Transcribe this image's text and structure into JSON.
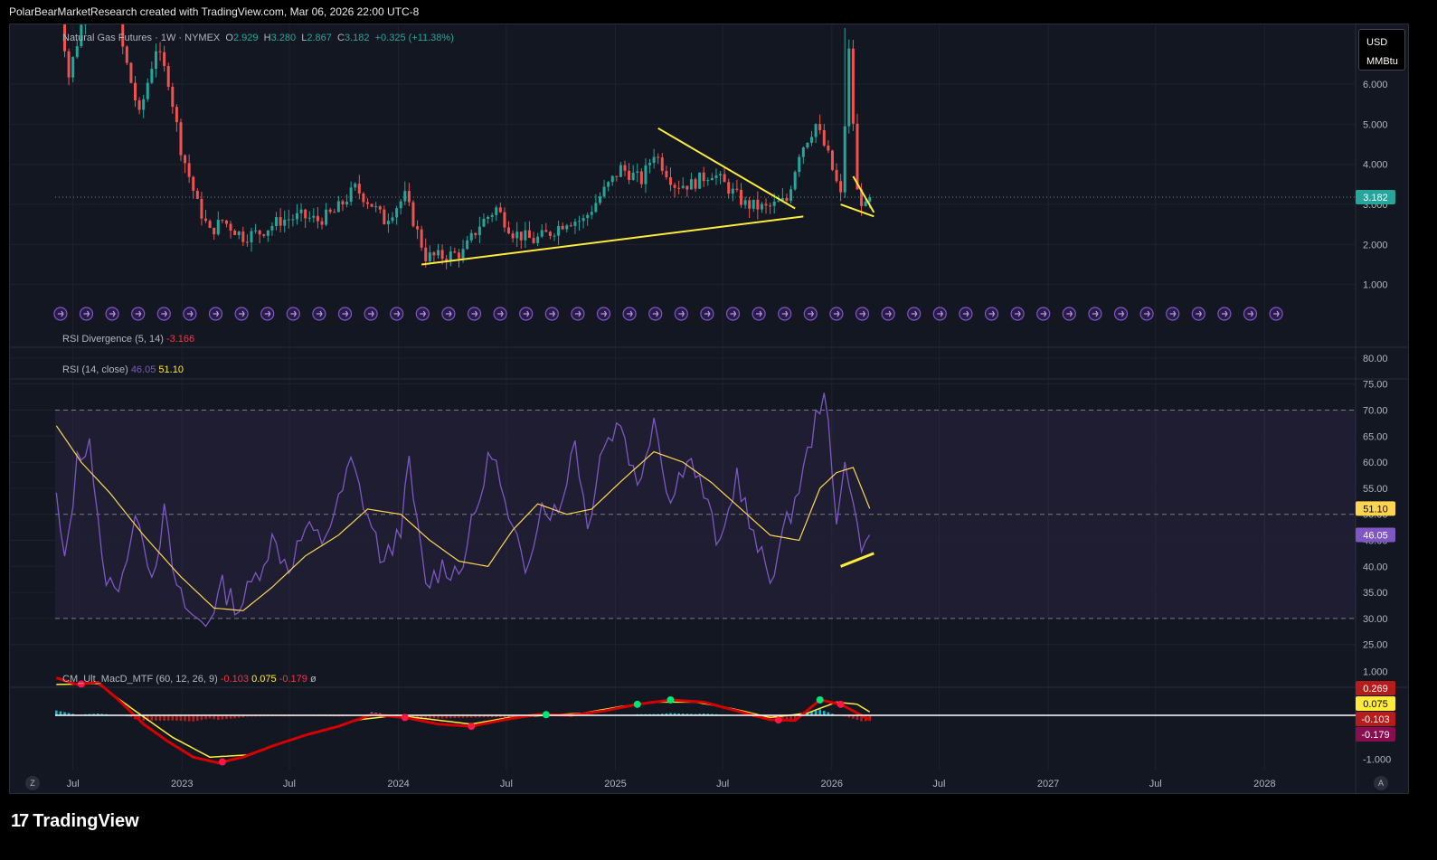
{
  "header": {
    "attribution": "PolarBearMarketResearch created with TradingView.com, Mar 06, 2026 22:00 UTC-8"
  },
  "colors": {
    "background": "#131722",
    "up": "#26a69a",
    "down": "#ef5350",
    "rsi_line": "#7e57c2",
    "rsi_ma": "#ffd54f",
    "trendline": "#ffeb3b",
    "macd_fast": "#d50000",
    "macd_signal": "#ffeb3b",
    "hist_pos": "#00bcd4",
    "hist_neg": "#b71c1c"
  },
  "price_pane": {
    "symbol": "Natural Gas Futures",
    "interval": "1W",
    "exchange": "NYMEX",
    "o_label": "O",
    "o_value": "2.929",
    "h_label": "H",
    "h_value": "3.280",
    "l_label": "L",
    "l_value": "2.867",
    "c_label": "C",
    "c_value": "3.182",
    "change": "+0.325 (+11.38%)",
    "currency": "USD",
    "unit": "MMBtu",
    "last_price": "3.182"
  },
  "rsi_div_pane": {
    "label": "RSI Divergence (5, 14)",
    "value": "-3.166"
  },
  "rsi_pane": {
    "label": "RSI (14, close)",
    "rsi_value": "46.05",
    "ma_value": "51.10"
  },
  "macd_pane": {
    "label": "CM_Ult_MacD_MTF (60, 12, 26, 9)",
    "v1": "-0.103",
    "v2": "0.075",
    "v3": "-0.179",
    "v4": "ø",
    "tags": [
      "0.269",
      "0.075",
      "-0.103",
      "-0.179"
    ]
  },
  "footer": {
    "brand": "TradingView",
    "left_button": "Z",
    "right_button": "A"
  },
  "chart_data": {
    "type": "candlestick",
    "x_axis": {
      "range": [
        "2022-06-01",
        "2028-06-01"
      ],
      "tick_labels": [
        "Jul",
        "2023",
        "Jul",
        "2024",
        "Jul",
        "2025",
        "Jul",
        "2026",
        "Jul",
        "2027",
        "Jul",
        "2028"
      ]
    },
    "price": {
      "ylim": [
        0,
        7.4
      ],
      "tick_labels": [
        "1.000",
        "2.000",
        "3.000",
        "4.000",
        "5.000",
        "6.000"
      ],
      "last": 3.182,
      "path_anchors": [
        [
          "2022-06-03",
          8.5
        ],
        [
          "2022-06-24",
          6.2
        ],
        [
          "2022-07-29",
          8.3
        ],
        [
          "2022-08-26",
          9.2
        ],
        [
          "2022-09-23",
          6.9
        ],
        [
          "2022-10-21",
          5.2
        ],
        [
          "2022-11-18",
          6.9
        ],
        [
          "2022-12-09",
          6.1
        ],
        [
          "2022-12-30",
          4.4
        ],
        [
          "2023-01-27",
          3.0
        ],
        [
          "2023-02-17",
          2.3
        ],
        [
          "2023-03-10",
          2.6
        ],
        [
          "2023-04-14",
          2.2
        ],
        [
          "2023-05-12",
          2.3
        ],
        [
          "2023-06-16",
          2.6
        ],
        [
          "2023-07-21",
          2.7
        ],
        [
          "2023-08-18",
          2.6
        ],
        [
          "2023-09-15",
          2.8
        ],
        [
          "2023-10-20",
          3.4
        ],
        [
          "2023-11-17",
          3.0
        ],
        [
          "2023-12-08",
          2.6
        ],
        [
          "2024-01-12",
          3.2
        ],
        [
          "2024-02-16",
          1.7
        ],
        [
          "2024-03-15",
          1.7
        ],
        [
          "2024-04-19",
          1.8
        ],
        [
          "2024-05-17",
          2.5
        ],
        [
          "2024-06-14",
          2.9
        ],
        [
          "2024-07-12",
          2.3
        ],
        [
          "2024-08-16",
          2.1
        ],
        [
          "2024-09-13",
          2.3
        ],
        [
          "2024-10-11",
          2.6
        ],
        [
          "2024-11-08",
          2.6
        ],
        [
          "2024-12-06",
          3.2
        ],
        [
          "2025-01-10",
          3.9
        ],
        [
          "2025-02-14",
          3.6
        ],
        [
          "2025-03-07",
          4.3
        ],
        [
          "2025-04-11",
          3.5
        ],
        [
          "2025-05-09",
          3.5
        ],
        [
          "2025-06-13",
          3.8
        ],
        [
          "2025-07-11",
          3.4
        ],
        [
          "2025-08-08",
          3.0
        ],
        [
          "2025-09-12",
          2.9
        ],
        [
          "2025-10-17",
          3.1
        ],
        [
          "2025-11-07",
          4.3
        ],
        [
          "2025-12-05",
          5.0
        ],
        [
          "2025-12-26",
          4.2
        ],
        [
          "2026-01-16",
          3.2
        ],
        [
          "2026-01-30",
          6.8
        ],
        [
          "2026-02-13",
          3.3
        ],
        [
          "2026-02-27",
          2.9
        ],
        [
          "2026-03-06",
          3.182
        ]
      ],
      "spike_high": {
        "date": "2026-01-23",
        "high": 7.4,
        "close": 6.9
      },
      "trendlines": [
        {
          "from": [
            "2024-02-09",
            1.5
          ],
          "to": [
            "2025-11-14",
            2.7
          ]
        },
        {
          "from": [
            "2025-03-14",
            4.9
          ],
          "to": [
            "2025-10-31",
            2.9
          ]
        },
        {
          "from": [
            "2026-02-06",
            3.7
          ],
          "to": [
            "2026-03-13",
            2.8
          ]
        },
        {
          "from": [
            "2026-01-16",
            3.0
          ],
          "to": [
            "2026-03-13",
            2.7
          ]
        }
      ]
    },
    "rsi": {
      "ylim": [
        22,
        80.5
      ],
      "tick_labels": [
        "25.00",
        "30.00",
        "35.00",
        "40.00",
        "45.00",
        "50.00",
        "55.00",
        "60.00",
        "65.00",
        "70.00",
        "75.00",
        "80.00"
      ],
      "bands": [
        30,
        50,
        70
      ],
      "last_rsi": 46.05,
      "last_ma": 51.1,
      "rsi_anchors": [
        [
          "2022-06-03",
          53
        ],
        [
          "2022-06-17",
          40
        ],
        [
          "2022-07-08",
          60
        ],
        [
          "2022-07-29",
          65
        ],
        [
          "2022-08-19",
          40
        ],
        [
          "2022-09-09",
          35
        ],
        [
          "2022-09-30",
          42
        ],
        [
          "2022-10-21",
          50
        ],
        [
          "2022-11-11",
          38
        ],
        [
          "2022-12-02",
          50
        ],
        [
          "2022-12-23",
          35
        ],
        [
          "2023-01-20",
          30
        ],
        [
          "2023-02-10",
          29
        ],
        [
          "2023-03-10",
          36
        ],
        [
          "2023-04-07",
          32
        ],
        [
          "2023-05-05",
          38
        ],
        [
          "2023-06-02",
          45
        ],
        [
          "2023-06-30",
          40
        ],
        [
          "2023-07-28",
          47
        ],
        [
          "2023-08-25",
          45
        ],
        [
          "2023-09-22",
          52
        ],
        [
          "2023-10-13",
          60
        ],
        [
          "2023-11-10",
          50
        ],
        [
          "2023-12-08",
          40
        ],
        [
          "2024-01-05",
          48
        ],
        [
          "2024-01-19",
          59
        ],
        [
          "2024-02-16",
          36
        ],
        [
          "2024-03-15",
          40
        ],
        [
          "2024-04-12",
          39
        ],
        [
          "2024-05-10",
          50
        ],
        [
          "2024-06-07",
          63
        ],
        [
          "2024-07-05",
          48
        ],
        [
          "2024-08-02",
          40
        ],
        [
          "2024-08-30",
          52
        ],
        [
          "2024-09-27",
          50
        ],
        [
          "2024-10-25",
          65
        ],
        [
          "2024-11-15",
          47
        ],
        [
          "2024-12-06",
          62
        ],
        [
          "2025-01-10",
          68
        ],
        [
          "2025-02-07",
          55
        ],
        [
          "2025-03-07",
          69
        ],
        [
          "2025-04-04",
          52
        ],
        [
          "2025-05-02",
          62
        ],
        [
          "2025-05-30",
          54
        ],
        [
          "2025-06-27",
          43
        ],
        [
          "2025-07-25",
          58
        ],
        [
          "2025-08-22",
          45
        ],
        [
          "2025-09-19",
          38
        ],
        [
          "2025-10-17",
          48
        ],
        [
          "2025-11-14",
          58
        ],
        [
          "2025-12-05",
          68
        ],
        [
          "2025-12-19",
          75
        ],
        [
          "2026-01-09",
          47
        ],
        [
          "2026-01-23",
          62
        ],
        [
          "2026-02-13",
          47
        ],
        [
          "2026-02-27",
          43
        ],
        [
          "2026-03-06",
          46.05
        ]
      ],
      "ma_anchors": [
        [
          "2022-06-03",
          67
        ],
        [
          "2022-07-15",
          60
        ],
        [
          "2022-09-02",
          54
        ],
        [
          "2022-10-28",
          46
        ],
        [
          "2022-12-30",
          38
        ],
        [
          "2023-02-24",
          32
        ],
        [
          "2023-04-14",
          31.5
        ],
        [
          "2023-06-02",
          36
        ],
        [
          "2023-07-28",
          42
        ],
        [
          "2023-09-22",
          46
        ],
        [
          "2023-11-10",
          51
        ],
        [
          "2024-01-05",
          50
        ],
        [
          "2024-02-23",
          45
        ],
        [
          "2024-04-12",
          41
        ],
        [
          "2024-05-31",
          40
        ],
        [
          "2024-07-12",
          47
        ],
        [
          "2024-08-23",
          52
        ],
        [
          "2024-10-11",
          50
        ],
        [
          "2024-11-22",
          51
        ],
        [
          "2025-01-17",
          57
        ],
        [
          "2025-03-07",
          62
        ],
        [
          "2025-04-25",
          60
        ],
        [
          "2025-06-13",
          56
        ],
        [
          "2025-08-01",
          51
        ],
        [
          "2025-09-19",
          46
        ],
        [
          "2025-11-07",
          45
        ],
        [
          "2025-12-12",
          55
        ],
        [
          "2026-01-09",
          58
        ],
        [
          "2026-02-06",
          59
        ],
        [
          "2026-03-06",
          51.1
        ]
      ],
      "divergence_line": {
        "from": [
          "2026-01-16",
          40
        ],
        "to": [
          "2026-03-13",
          42.5
        ]
      }
    },
    "macd": {
      "ylim": [
        -1.15,
        1.15
      ],
      "tick_labels": [
        "1.000",
        "0.000",
        "-1.000"
      ],
      "macd_anchors": [
        [
          "2022-06-03",
          0.85
        ],
        [
          "2022-07-08",
          0.7
        ],
        [
          "2022-08-12",
          0.75
        ],
        [
          "2022-09-16",
          0.35
        ],
        [
          "2022-10-28",
          -0.2
        ],
        [
          "2022-12-09",
          -0.6
        ],
        [
          "2023-01-20",
          -0.95
        ],
        [
          "2023-03-03",
          -1.08
        ],
        [
          "2023-04-14",
          -0.95
        ],
        [
          "2023-06-02",
          -0.7
        ],
        [
          "2023-07-28",
          -0.45
        ],
        [
          "2023-09-22",
          -0.25
        ],
        [
          "2023-11-17",
          0.02
        ],
        [
          "2024-01-12",
          -0.05
        ],
        [
          "2024-03-08",
          -0.2
        ],
        [
          "2024-05-03",
          -0.25
        ],
        [
          "2024-06-28",
          -0.1
        ],
        [
          "2024-08-23",
          0.02
        ],
        [
          "2024-10-18",
          0.0
        ],
        [
          "2024-12-13",
          0.1
        ],
        [
          "2025-02-07",
          0.25
        ],
        [
          "2025-04-04",
          0.35
        ],
        [
          "2025-05-30",
          0.3
        ],
        [
          "2025-07-25",
          0.1
        ],
        [
          "2025-09-19",
          -0.1
        ],
        [
          "2025-10-31",
          -0.12
        ],
        [
          "2025-12-12",
          0.35
        ],
        [
          "2026-01-16",
          0.25
        ],
        [
          "2026-02-13",
          0.05
        ],
        [
          "2026-03-06",
          -0.103
        ]
      ],
      "signal_anchors": [
        [
          "2022-06-03",
          0.7
        ],
        [
          "2022-08-12",
          0.72
        ],
        [
          "2022-10-14",
          0.1
        ],
        [
          "2022-12-16",
          -0.5
        ],
        [
          "2023-02-17",
          -0.95
        ],
        [
          "2023-04-21",
          -0.9
        ],
        [
          "2023-06-23",
          -0.6
        ],
        [
          "2023-08-25",
          -0.35
        ],
        [
          "2023-10-27",
          -0.1
        ],
        [
          "2023-12-29",
          0.0
        ],
        [
          "2024-03-01",
          -0.1
        ],
        [
          "2024-05-03",
          -0.2
        ],
        [
          "2024-07-05",
          -0.05
        ],
        [
          "2024-09-06",
          0.0
        ],
        [
          "2024-11-08",
          0.05
        ],
        [
          "2025-01-10",
          0.2
        ],
        [
          "2025-03-14",
          0.3
        ],
        [
          "2025-05-16",
          0.3
        ],
        [
          "2025-07-18",
          0.15
        ],
        [
          "2025-09-19",
          -0.05
        ],
        [
          "2025-11-21",
          0.05
        ],
        [
          "2026-01-09",
          0.3
        ],
        [
          "2026-02-13",
          0.25
        ],
        [
          "2026-03-06",
          0.075
        ]
      ]
    }
  }
}
